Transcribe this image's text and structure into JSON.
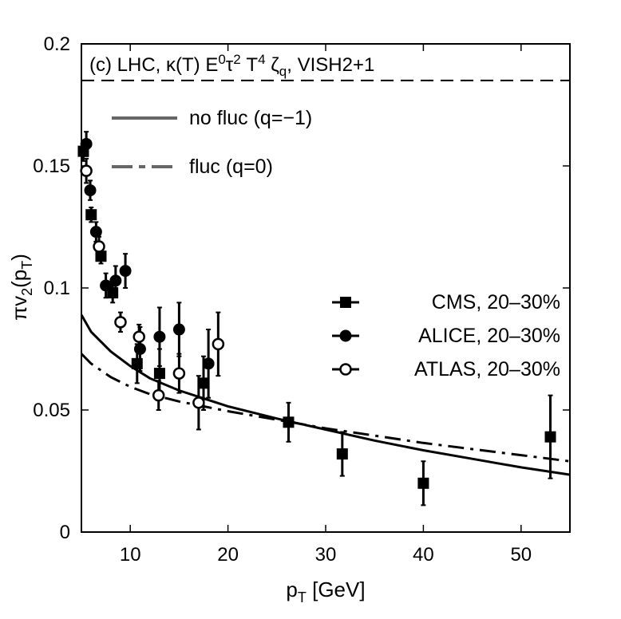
{
  "chart_data": {
    "type": "scatter",
    "title_parts": {
      "prefix": "(c) LHC, κ(T) E",
      "e_exp": "0",
      "tau": "τ",
      "tau_exp": "2",
      "t": " T",
      "t_exp": "4",
      "zeta": " ζ",
      "zeta_sub": "q",
      "suffix": ", VISH2+1"
    },
    "xlabel": {
      "main": "p",
      "sub": "T",
      "rest": " [GeV]"
    },
    "ylabel": {
      "pre": "πv",
      "sub1": "2",
      "mid": "(p",
      "sub2": "T",
      "post": ")"
    },
    "xlim": [
      5,
      55
    ],
    "ylim": [
      0,
      0.2
    ],
    "x_ticks": [
      10,
      20,
      30,
      40,
      50
    ],
    "x_tick_labels": [
      "10",
      "20",
      "30",
      "40",
      "50"
    ],
    "y_ticks": [
      0,
      0.05,
      0.1,
      0.15,
      0.2
    ],
    "y_tick_labels": [
      "0",
      "0.05",
      "0.1",
      "0.15",
      "0.2"
    ],
    "reference_line": {
      "y": 0.185,
      "style": "dashed"
    },
    "curves": [
      {
        "label": "no fluc (q=−1)",
        "style": "solid",
        "color": "#000000",
        "legend_color": "#666666",
        "points": [
          [
            5,
            0.089
          ],
          [
            6,
            0.082
          ],
          [
            8,
            0.074
          ],
          [
            10,
            0.068
          ],
          [
            12,
            0.063
          ],
          [
            15,
            0.058
          ],
          [
            20,
            0.0515
          ],
          [
            25,
            0.0465
          ],
          [
            30,
            0.042
          ],
          [
            35,
            0.0375
          ],
          [
            40,
            0.0335
          ],
          [
            45,
            0.03
          ],
          [
            50,
            0.0265
          ],
          [
            55,
            0.0235
          ]
        ]
      },
      {
        "label": "fluc (q=0)",
        "style": "dashdot",
        "color": "#000000",
        "legend_color": "#666666",
        "points": [
          [
            5,
            0.073
          ],
          [
            6,
            0.069
          ],
          [
            8,
            0.0635
          ],
          [
            10,
            0.0595
          ],
          [
            12,
            0.0565
          ],
          [
            15,
            0.0535
          ],
          [
            20,
            0.0495
          ],
          [
            25,
            0.046
          ],
          [
            30,
            0.0425
          ],
          [
            35,
            0.0395
          ],
          [
            40,
            0.0365
          ],
          [
            45,
            0.034
          ],
          [
            50,
            0.0315
          ],
          [
            55,
            0.029
          ]
        ]
      }
    ],
    "series": [
      {
        "name": "CMS, 20–30%",
        "marker": "square",
        "points": [
          {
            "x": 5.2,
            "y": 0.156,
            "yerr": 0.004
          },
          {
            "x": 6.0,
            "y": 0.13,
            "yerr": 0.003
          },
          {
            "x": 7.0,
            "y": 0.113,
            "yerr": 0.003
          },
          {
            "x": 8.2,
            "y": 0.098,
            "yerr": 0.004
          },
          {
            "x": 10.7,
            "y": 0.069,
            "yerr": 0.008
          },
          {
            "x": 13.0,
            "y": 0.065,
            "yerr": 0.01
          },
          {
            "x": 17.5,
            "y": 0.061,
            "yerr": 0.011
          },
          {
            "x": 26.2,
            "y": 0.045,
            "yerr": 0.008
          },
          {
            "x": 31.7,
            "y": 0.032,
            "yerr": 0.009
          },
          {
            "x": 40.0,
            "y": 0.02,
            "yerr": 0.009
          },
          {
            "x": 53.0,
            "y": 0.039,
            "yerr": 0.017
          }
        ]
      },
      {
        "name": "ALICE, 20–30%",
        "marker": "filled-circle",
        "points": [
          {
            "x": 5.5,
            "y": 0.159,
            "yerr": 0.005
          },
          {
            "x": 5.9,
            "y": 0.14,
            "yerr": 0.004
          },
          {
            "x": 6.5,
            "y": 0.123,
            "yerr": 0.004
          },
          {
            "x": 7.5,
            "y": 0.101,
            "yerr": 0.005
          },
          {
            "x": 8.5,
            "y": 0.103,
            "yerr": 0.006
          },
          {
            "x": 9.5,
            "y": 0.107,
            "yerr": 0.007
          },
          {
            "x": 11.0,
            "y": 0.075,
            "yerr": 0.009
          },
          {
            "x": 13.0,
            "y": 0.08,
            "yerr": 0.012
          },
          {
            "x": 15.0,
            "y": 0.083,
            "yerr": 0.011
          },
          {
            "x": 18.0,
            "y": 0.069,
            "yerr": 0.014
          }
        ]
      },
      {
        "name": "ATLAS, 20–30%",
        "marker": "open-circle",
        "points": [
          {
            "x": 5.5,
            "y": 0.148,
            "yerr": 0.005
          },
          {
            "x": 6.8,
            "y": 0.117,
            "yerr": 0.004
          },
          {
            "x": 9.0,
            "y": 0.086,
            "yerr": 0.004
          },
          {
            "x": 10.9,
            "y": 0.08,
            "yerr": 0.005
          },
          {
            "x": 12.9,
            "y": 0.056,
            "yerr": 0.006
          },
          {
            "x": 15.0,
            "y": 0.065,
            "yerr": 0.008
          },
          {
            "x": 17.0,
            "y": 0.053,
            "yerr": 0.011
          },
          {
            "x": 19.0,
            "y": 0.077,
            "yerr": 0.013
          }
        ]
      }
    ]
  }
}
